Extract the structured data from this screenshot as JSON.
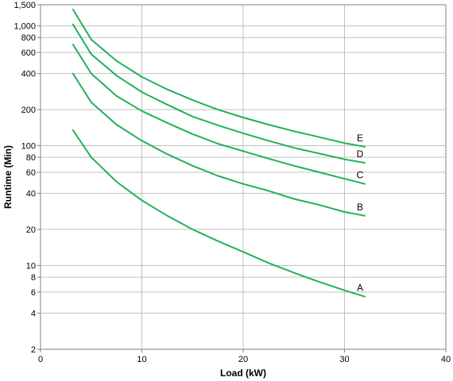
{
  "chart_data": {
    "type": "line",
    "title": "",
    "xlabel": "Load (kW)",
    "ylabel": "Runtime (Min)",
    "xlim": [
      0,
      40
    ],
    "ylim": [
      2,
      1500
    ],
    "y_scale": "log",
    "grid": true,
    "x_ticks": [
      0,
      10,
      20,
      30,
      40
    ],
    "x_tick_labels": [
      "0",
      "10",
      "20",
      "30",
      "40"
    ],
    "y_ticks": [
      2,
      4,
      6,
      8,
      10,
      20,
      40,
      60,
      80,
      100,
      200,
      400,
      600,
      800,
      1000,
      1500
    ],
    "y_tick_labels": [
      "2",
      "4",
      "6",
      "8",
      "10",
      "20",
      "40",
      "60",
      "80",
      "100",
      "200",
      "400",
      "600",
      "800",
      "1,000",
      "1,500"
    ],
    "line_color": "#22b15a",
    "x": [
      3.2,
      5,
      7.5,
      10,
      12.5,
      15,
      17.5,
      20,
      22.5,
      25,
      27.5,
      30,
      32
    ],
    "series": [
      {
        "name": "A",
        "values": [
          135,
          80,
          50,
          35,
          26,
          20,
          16,
          13,
          10.5,
          8.7,
          7.3,
          6.2,
          5.5
        ]
      },
      {
        "name": "B",
        "values": [
          400,
          230,
          150,
          110,
          85,
          68,
          56,
          48,
          42,
          36,
          32,
          28,
          26
        ]
      },
      {
        "name": "C",
        "values": [
          700,
          400,
          260,
          195,
          155,
          125,
          104,
          90,
          78,
          68,
          60,
          53,
          48
        ]
      },
      {
        "name": "D",
        "values": [
          1030,
          580,
          385,
          280,
          220,
          175,
          148,
          127,
          110,
          96,
          86,
          77,
          72
        ]
      },
      {
        "name": "E",
        "values": [
          1370,
          770,
          510,
          375,
          295,
          240,
          200,
          172,
          150,
          132,
          118,
          105,
          98
        ]
      }
    ]
  }
}
